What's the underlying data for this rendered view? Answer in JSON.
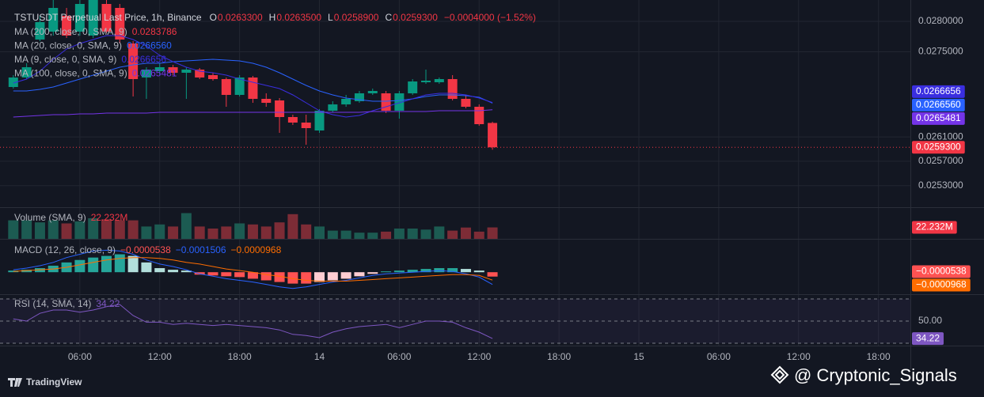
{
  "chart_data": [
    {
      "type": "candlestick",
      "title": "TSTUSDT Perpetual Last Price, 1h, Binance",
      "ohlc_legend": [
        {
          "key": "O",
          "value": "0.0263300"
        },
        {
          "key": "H",
          "value": "0.0263500"
        },
        {
          "key": "L",
          "value": "0.0258900"
        },
        {
          "key": "C",
          "value": "0.0259300"
        }
      ],
      "change": "−0.0004000 (−1.52%)",
      "x": [
        1,
        2,
        3,
        4,
        5,
        6,
        7,
        8,
        9,
        10,
        11,
        12,
        13,
        14,
        15,
        16,
        17,
        18,
        19,
        20,
        21,
        22,
        23,
        24,
        25,
        26,
        27,
        28,
        29,
        30,
        31,
        32,
        33,
        34,
        35,
        36,
        37
      ],
      "xlim": [
        0,
        68.4
      ],
      "xticks": [
        {
          "value": 6,
          "label": "06:00"
        },
        {
          "value": 12,
          "label": "12:00"
        },
        {
          "value": 18,
          "label": "18:00"
        },
        {
          "value": 24,
          "label": "14"
        },
        {
          "value": 30,
          "label": "06:00"
        },
        {
          "value": 36,
          "label": "12:00"
        },
        {
          "value": 42,
          "label": "18:00"
        },
        {
          "value": 48,
          "label": "15"
        },
        {
          "value": 54,
          "label": "06:00"
        },
        {
          "value": 60,
          "label": "12:00"
        },
        {
          "value": 66,
          "label": "18:00"
        }
      ],
      "open": [
        0.026921,
        0.027077,
        0.027701,
        0.027831,
        0.028091,
        0.027831,
        0.027766,
        0.028286,
        0.028221,
        0.027636,
        0.027077,
        0.027181,
        0.027246,
        0.027155,
        0.027207,
        0.027116,
        0.027051,
        0.026791,
        0.027077,
        0.026726,
        0.0267,
        0.026427,
        0.026336,
        0.026206,
        0.026531,
        0.026635,
        0.026687,
        0.026817,
        0.026817,
        0.026531,
        0.026817,
        0.026999,
        0.026999,
        0.027051,
        0.026726,
        0.026596,
        0.02633
      ],
      "high": [
        0.027116,
        0.027311,
        0.028091,
        0.028351,
        0.028221,
        0.028416,
        0.028481,
        0.028416,
        0.028286,
        0.027675,
        0.027246,
        0.027311,
        0.027285,
        0.027246,
        0.027233,
        0.027155,
        0.027077,
        0.027116,
        0.027103,
        0.026817,
        0.026739,
        0.026466,
        0.026466,
        0.026557,
        0.026687,
        0.026791,
        0.026856,
        0.026895,
        0.026856,
        0.026856,
        0.027051,
        0.027207,
        0.027077,
        0.027116,
        0.026791,
        0.026635,
        0.02635
      ],
      "low": [
        0.026895,
        0.027051,
        0.027675,
        0.027766,
        0.027727,
        0.027766,
        0.027727,
        0.027805,
        0.027636,
        0.026765,
        0.026726,
        0.027116,
        0.027116,
        0.026726,
        0.027051,
        0.027025,
        0.026596,
        0.026765,
        0.026661,
        0.026596,
        0.026167,
        0.026297,
        0.025972,
        0.026167,
        0.026505,
        0.026596,
        0.026661,
        0.026791,
        0.026492,
        0.026401,
        0.026791,
        0.026973,
        0.026973,
        0.0267,
        0.02657,
        0.026284,
        0.02589
      ],
      "close": [
        0.027077,
        0.027246,
        0.027987,
        0.028221,
        0.027766,
        0.028286,
        0.028416,
        0.027831,
        0.027701,
        0.027051,
        0.027207,
        0.027246,
        0.027155,
        0.027207,
        0.027077,
        0.027051,
        0.026791,
        0.027077,
        0.026726,
        0.026661,
        0.026427,
        0.026336,
        0.026245,
        0.026531,
        0.026635,
        0.026726,
        0.026817,
        0.026856,
        0.026531,
        0.026817,
        0.027012,
        0.027025,
        0.027051,
        0.026726,
        0.026596,
        0.02631,
        0.02593
      ],
      "up_color": "#089981",
      "down_color": "#f23645",
      "ylim": [
        0.024945,
        0.028351
      ],
      "yticks": [
        {
          "value": 0.028,
          "label": "0.0280000"
        },
        {
          "value": 0.0275,
          "label": "0.0275000"
        },
        {
          "value": 0.0261,
          "label": "0.0261000"
        },
        {
          "value": 0.0257,
          "label": "0.0257000"
        },
        {
          "value": 0.0253,
          "label": "0.0253000"
        }
      ],
      "grid": true,
      "series": [
        {
          "name": "MA (200, close, 0, SMA, 9)",
          "color": "#f23645",
          "last": "0.0283786"
        },
        {
          "name": "MA (20, close, 0, SMA, 9)",
          "color": "#2962ff",
          "last": "0.0266560",
          "values": [
            0.026856,
            0.026856,
            0.026882,
            0.026921,
            0.026986,
            0.027051,
            0.027116,
            0.027181,
            0.027246,
            0.027285,
            0.027311,
            0.027311,
            0.027337,
            0.02735,
            0.027363,
            0.027376,
            0.027363,
            0.02735,
            0.027311,
            0.027246,
            0.027155,
            0.027051,
            0.026947,
            0.026856,
            0.026791,
            0.026739,
            0.026713,
            0.026687,
            0.026687,
            0.0267,
            0.026726,
            0.026765,
            0.026791,
            0.026791,
            0.026778,
            0.026752,
            0.026656
          ]
        },
        {
          "name": "MA (9, close, 0, SMA, 9)",
          "color": "#3a2ee0",
          "last": "0.0266656",
          "values": [
            0.026986,
            0.027051,
            0.027181,
            0.027376,
            0.027545,
            0.027636,
            0.027701,
            0.027766,
            0.027766,
            0.027701,
            0.027597,
            0.027441,
            0.027337,
            0.027246,
            0.027181,
            0.027155,
            0.027116,
            0.027051,
            0.026999,
            0.026947,
            0.026895,
            0.026791,
            0.026661,
            0.026531,
            0.026466,
            0.026427,
            0.026453,
            0.026531,
            0.026596,
            0.026661,
            0.026726,
            0.026791,
            0.026817,
            0.026817,
            0.026791,
            0.026739,
            0.0266656
          ]
        },
        {
          "name": "MA (100, close, 0, SMA, 9)",
          "color": "#7434e8",
          "last": "0.0265481",
          "values": [
            0.026427,
            0.02644,
            0.026453,
            0.026466,
            0.026466,
            0.026479,
            0.026479,
            0.026492,
            0.026492,
            0.026492,
            0.026492,
            0.026505,
            0.026505,
            0.026505,
            0.026505,
            0.026505,
            0.026505,
            0.026505,
            0.026505,
            0.026505,
            0.026505,
            0.026505,
            0.026505,
            0.026505,
            0.026505,
            0.026505,
            0.026505,
            0.026518,
            0.026518,
            0.026518,
            0.026518,
            0.026518,
            0.026531,
            0.026531,
            0.026531,
            0.026531,
            0.0265481
          ]
        }
      ]
    },
    {
      "type": "bar",
      "title": "Volume (SMA, 9)",
      "legend_value": "22.232M",
      "values": [
        36,
        36,
        32,
        36,
        30,
        34,
        40,
        38,
        36,
        36,
        24,
        28,
        24,
        50,
        24,
        20,
        24,
        30,
        28,
        24,
        32,
        48,
        28,
        24,
        16,
        16,
        12,
        12,
        14,
        20,
        20,
        18,
        24,
        16,
        22,
        14,
        22.232
      ],
      "ylim": [
        0,
        60
      ],
      "up_color": "#1c5b52",
      "down_color": "#7d2c36"
    },
    {
      "type": "macd",
      "title": "MACD (12, 26, close, 9)",
      "ylim": [
        -0.00027,
        0.0004
      ],
      "histogram": {
        "legend": "−0.0000538",
        "colors": [
          "#26a69a",
          "#b2dfdb",
          "#ffcdd2",
          "#ff5252"
        ],
        "values": [
          2e-05,
          3e-05,
          5e-05,
          8e-05,
          0.00012,
          0.00015,
          0.00018,
          0.0002,
          0.00022,
          0.0002,
          0.00012,
          5e-05,
          3e-05,
          2e-05,
          -3e-05,
          -4e-05,
          -5e-05,
          -6e-05,
          -8e-05,
          -0.0001,
          -0.00012,
          -0.00014,
          -0.00014,
          -0.00012,
          -0.0001,
          -8e-05,
          -5e-05,
          -2e-05,
          1e-05,
          2e-05,
          3e-05,
          4e-05,
          5e-05,
          5e-05,
          4e-05,
          2e-05,
          -5.38e-05
        ]
      },
      "macd": {
        "legend": "−0.0001506",
        "color": "#2962ff",
        "values": [
          3e-05,
          5e-05,
          8e-05,
          0.00012,
          0.00018,
          0.00022,
          0.00026,
          0.00027,
          0.00026,
          0.00022,
          0.00015,
          0.0001,
          7e-05,
          3e-05,
          -2e-05,
          -5e-05,
          -8e-05,
          -0.0001,
          -0.00012,
          -0.00015,
          -0.00018,
          -0.0002,
          -0.00018,
          -0.00015,
          -0.00012,
          -0.0001,
          -7e-05,
          -4e-05,
          -2e-05,
          -1e-05,
          0,
          1e-05,
          2e-05,
          1e-05,
          -2e-05,
          -6e-05,
          -0.0001506
        ]
      },
      "signal": {
        "legend": "−0.0000968",
        "color": "#ff6d00",
        "values": [
          1e-05,
          2e-05,
          3e-05,
          4e-05,
          6e-05,
          9e-05,
          0.00012,
          0.00015,
          0.00017,
          0.00018,
          0.00018,
          0.00017,
          0.00015,
          0.00012,
          0.0001,
          7e-05,
          4e-05,
          2e-05,
          0,
          -3e-05,
          -5e-05,
          -8e-05,
          -0.0001,
          -0.00011,
          -0.00011,
          -0.00011,
          -0.0001,
          -9e-05,
          -8e-05,
          -7e-05,
          -6e-05,
          -5e-05,
          -4e-05,
          -3e-05,
          -3e-05,
          -4e-05,
          -9.68e-05
        ]
      }
    },
    {
      "type": "line",
      "title": "RSI (14, SMA, 14)",
      "legend_value": "34.22",
      "color": "#7e57c2",
      "values": [
        52,
        50,
        57,
        60,
        60,
        58,
        60,
        63,
        65,
        55,
        49,
        49,
        47,
        48,
        47,
        46,
        47,
        46,
        45,
        44,
        42,
        38,
        37,
        35,
        40,
        43,
        45,
        46,
        47,
        44,
        47,
        50,
        50,
        49,
        44,
        40,
        34.22
      ],
      "ylim": [
        28.6,
        71.4
      ],
      "yticks": [
        {
          "value": 50,
          "label": "50.00"
        }
      ],
      "levels": [
        70,
        30
      ]
    }
  ],
  "footer": {
    "brand": "TradingView",
    "watermark": "@ Cryptonic_Signals"
  }
}
